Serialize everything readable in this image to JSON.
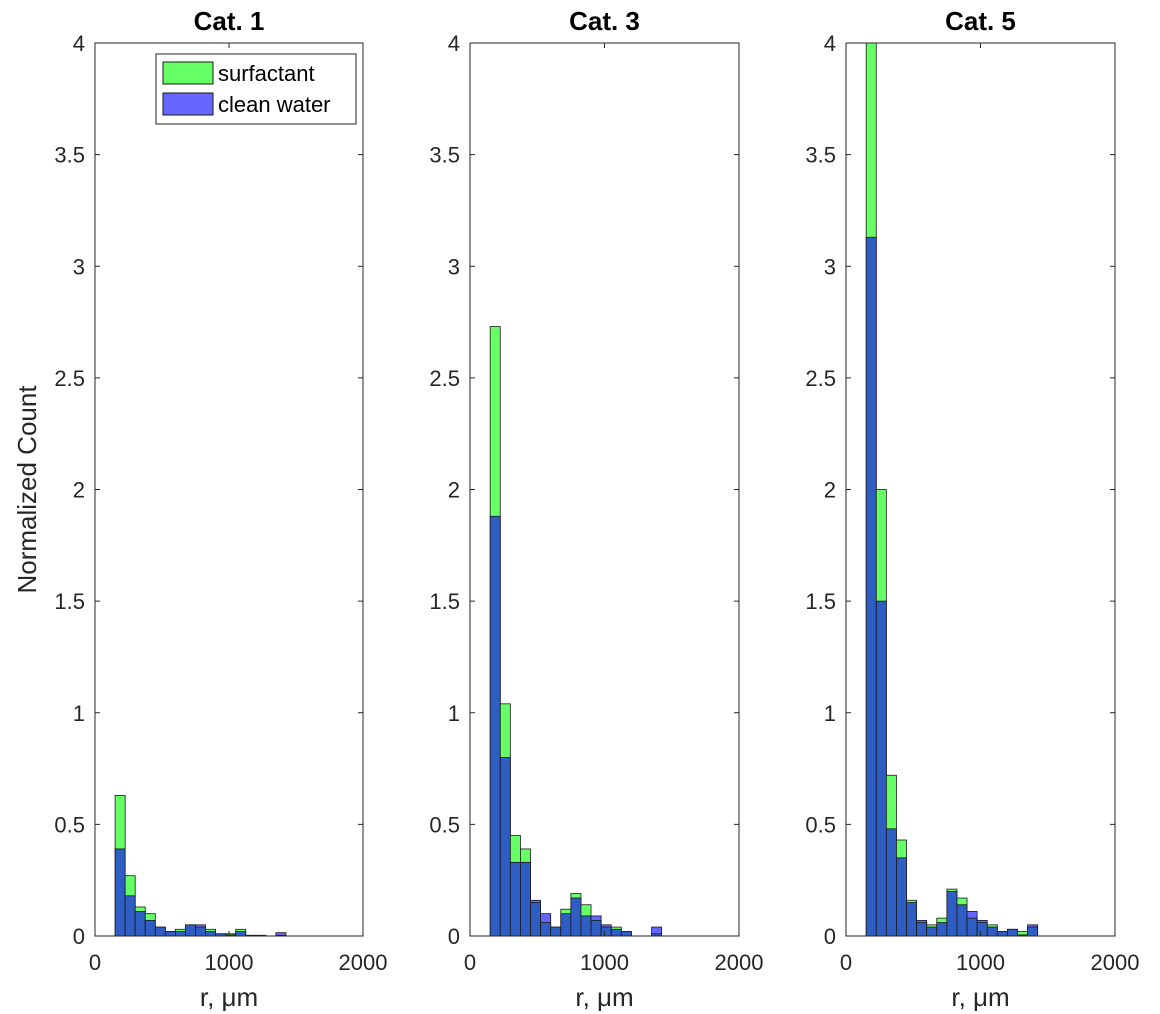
{
  "chart_data": [
    {
      "type": "bar",
      "title": "Cat. 1",
      "xlabel": "r, μm",
      "ylabel": "Normalized Count",
      "xlim": [
        0,
        2000
      ],
      "ylim": [
        0,
        4
      ],
      "xticks": [
        "0",
        "1000",
        "2000"
      ],
      "yticks": [
        "0",
        "0.5",
        "1",
        "1.5",
        "2",
        "2.5",
        "3",
        "3.5",
        "4"
      ],
      "bin_edges": [
        150,
        225,
        300,
        375,
        450,
        525,
        600,
        675,
        750,
        825,
        900,
        975,
        1050,
        1125,
        1200,
        1275,
        1350,
        1425
      ],
      "legend": {
        "position": "top-right",
        "entries": [
          "surfactant",
          "clean water"
        ]
      },
      "series": [
        {
          "name": "surfactant",
          "color": "#66ff66",
          "values": [
            0.63,
            0.27,
            0.13,
            0.1,
            0.04,
            0.02,
            0.03,
            0.05,
            0.04,
            0.03,
            0.01,
            0.01,
            0.03,
            0.003,
            0.003,
            0,
            0.003
          ]
        },
        {
          "name": "clean water",
          "color": "#6666ff",
          "values": [
            0.39,
            0.18,
            0.11,
            0.07,
            0.04,
            0.02,
            0.02,
            0.05,
            0.05,
            0.02,
            0.01,
            0.005,
            0.02,
            0.003,
            0.003,
            0,
            0.015
          ]
        }
      ],
      "overlap_color": "#2e5ec4"
    },
    {
      "type": "bar",
      "title": "Cat. 3",
      "xlabel": "r, μm",
      "ylabel": "",
      "xlim": [
        0,
        2000
      ],
      "ylim": [
        0,
        4
      ],
      "xticks": [
        "0",
        "1000",
        "2000"
      ],
      "yticks": [
        "0",
        "0.5",
        "1",
        "1.5",
        "2",
        "2.5",
        "3",
        "3.5",
        "4"
      ],
      "bin_edges": [
        150,
        225,
        300,
        375,
        450,
        525,
        600,
        675,
        750,
        825,
        900,
        975,
        1050,
        1125,
        1200,
        1275,
        1350,
        1425
      ],
      "series": [
        {
          "name": "surfactant",
          "color": "#66ff66",
          "values": [
            2.73,
            1.04,
            0.45,
            0.39,
            0.15,
            0.06,
            0.04,
            0.12,
            0.19,
            0.14,
            0.07,
            0.04,
            0.04,
            0.02,
            0,
            0,
            0.01
          ]
        },
        {
          "name": "clean water",
          "color": "#6666ff",
          "values": [
            1.88,
            0.8,
            0.33,
            0.33,
            0.16,
            0.1,
            0.04,
            0.1,
            0.17,
            0.09,
            0.09,
            0.05,
            0.03,
            0.02,
            0,
            0,
            0.04
          ]
        }
      ],
      "overlap_color": "#2e5ec4"
    },
    {
      "type": "bar",
      "title": "Cat. 5",
      "xlabel": "r, μm",
      "ylabel": "",
      "xlim": [
        0,
        2000
      ],
      "ylim": [
        0,
        4
      ],
      "xticks": [
        "0",
        "1000",
        "2000"
      ],
      "yticks": [
        "0",
        "0.5",
        "1",
        "1.5",
        "2",
        "2.5",
        "3",
        "3.5",
        "4"
      ],
      "bin_edges": [
        150,
        225,
        300,
        375,
        450,
        525,
        600,
        675,
        750,
        825,
        900,
        975,
        1050,
        1125,
        1200,
        1275,
        1350,
        1425
      ],
      "series": [
        {
          "name": "surfactant",
          "color": "#66ff66",
          "values": [
            4.0,
            2.0,
            0.72,
            0.43,
            0.16,
            0.06,
            0.05,
            0.08,
            0.21,
            0.17,
            0.08,
            0.06,
            0.05,
            0.02,
            0.03,
            0.02,
            0.04
          ]
        },
        {
          "name": "clean water",
          "color": "#6666ff",
          "values": [
            3.13,
            1.5,
            0.48,
            0.35,
            0.15,
            0.07,
            0.04,
            0.06,
            0.2,
            0.14,
            0.11,
            0.07,
            0.04,
            0.02,
            0.03,
            0.005,
            0.05
          ]
        }
      ],
      "overlap_color": "#2e5ec4"
    }
  ]
}
